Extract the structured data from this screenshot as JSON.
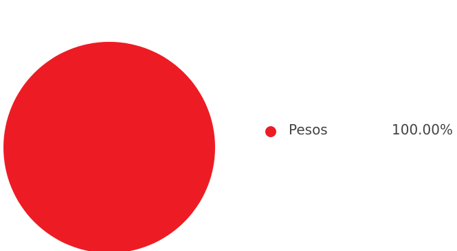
{
  "chart_data": {
    "type": "pie",
    "title": "",
    "categories": [
      "Pesos"
    ],
    "values": [
      100.0
    ],
    "value_labels": [
      "100.00%"
    ],
    "colors": [
      "#ed1c24"
    ],
    "legend_position": "right"
  }
}
